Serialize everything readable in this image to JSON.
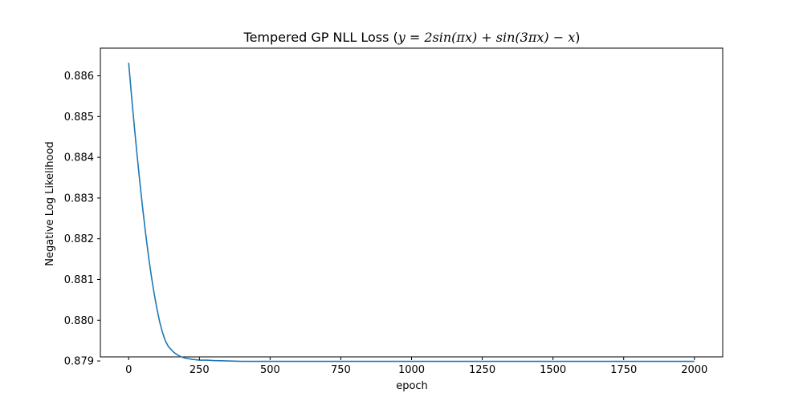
{
  "chart_data": {
    "type": "line",
    "title": {
      "prefix": "Tempered GP NLL Loss (",
      "equation": "y = 2sin(πx) + sin(3πx) − x",
      "suffix": ")"
    },
    "xlabel": "epoch",
    "ylabel": "Negative Log Likelihood",
    "xlim": [
      -100,
      2100
    ],
    "ylim": [
      0.8791,
      0.88668
    ],
    "xticks": [
      0,
      250,
      500,
      750,
      1000,
      1250,
      1500,
      1750,
      2000
    ],
    "xtick_labels": [
      "0",
      "250",
      "500",
      "750",
      "1000",
      "1250",
      "1500",
      "1750",
      "2000"
    ],
    "yticks": [
      0.879,
      0.88,
      0.881,
      0.882,
      0.883,
      0.884,
      0.885,
      0.886
    ],
    "ytick_labels": [
      "0.879",
      "0.880",
      "0.881",
      "0.882",
      "0.883",
      "0.884",
      "0.885",
      "0.886"
    ],
    "grid": false,
    "series": [
      {
        "color": "#1f77b4",
        "x": [
          0,
          10,
          20,
          30,
          40,
          50,
          60,
          70,
          80,
          90,
          100,
          110,
          120,
          130,
          140,
          150,
          160,
          170,
          180,
          190,
          200,
          225,
          250,
          275,
          300,
          350,
          400,
          500,
          750,
          1000,
          1250,
          1500,
          1750,
          2000
        ],
        "y": [
          0.88632,
          0.88552,
          0.88476,
          0.88404,
          0.88336,
          0.88272,
          0.88213,
          0.88158,
          0.88109,
          0.88066,
          0.88028,
          0.87995,
          0.87969,
          0.87949,
          0.87936,
          0.87928,
          0.87921,
          0.87916,
          0.87912,
          0.87909,
          0.87907,
          0.87904,
          0.87902,
          0.87902,
          0.87901,
          0.879,
          0.87899,
          0.87899,
          0.87899,
          0.87899,
          0.87899,
          0.87899,
          0.87899,
          0.87899
        ]
      }
    ]
  }
}
